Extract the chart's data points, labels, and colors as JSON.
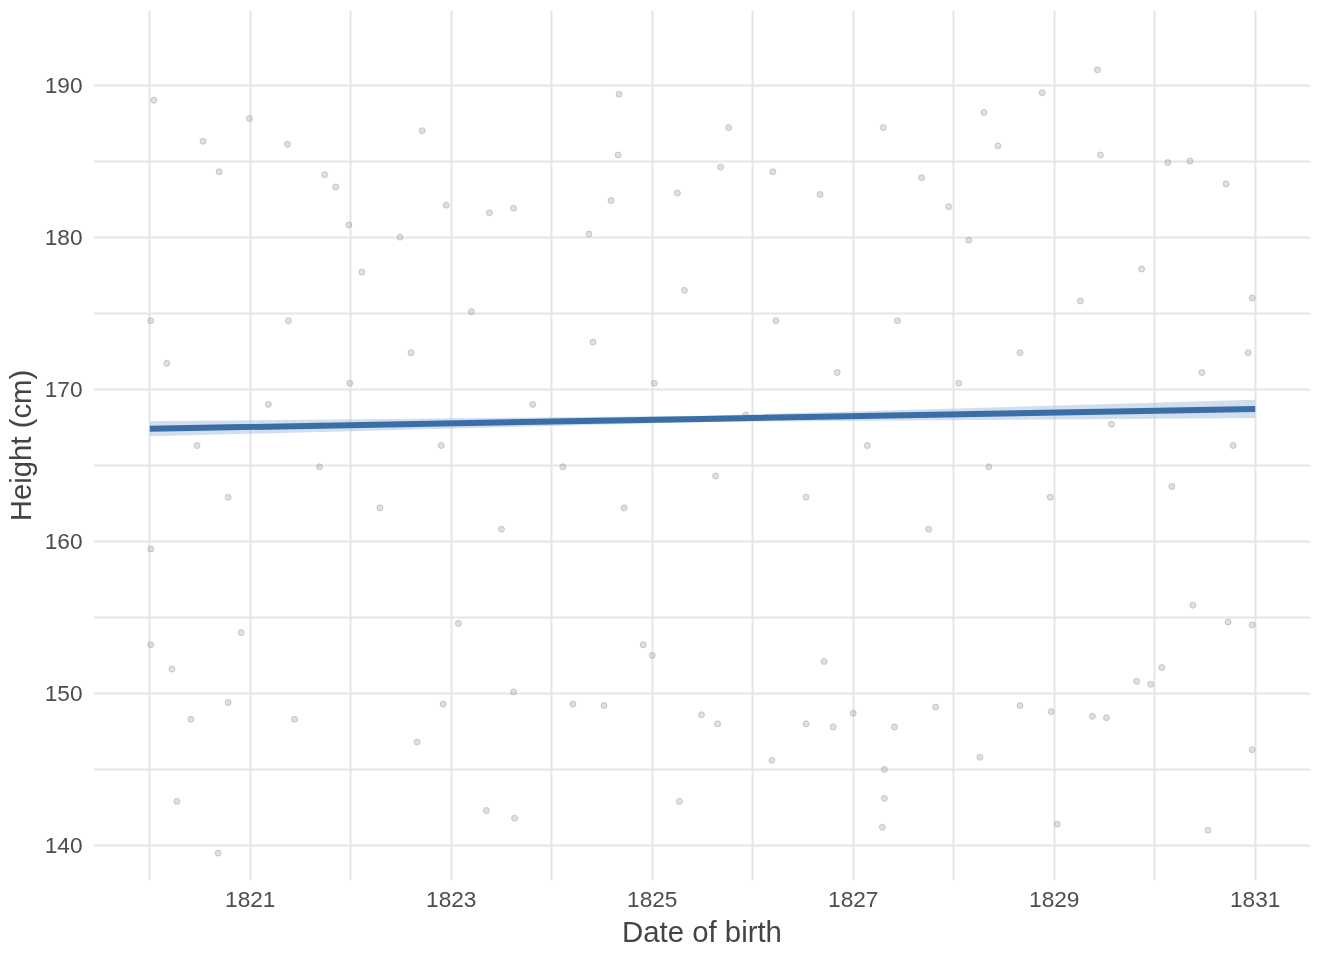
{
  "chart_data": {
    "type": "scatter",
    "xlabel": "Date of birth",
    "ylabel": "Height (cm)",
    "grid": true,
    "xlim": [
      1819.44,
      1831.55
    ],
    "ylim": [
      137.7,
      194.9
    ],
    "xticks": [
      {
        "value": 1820,
        "label": null
      },
      1821,
      {
        "value": 1822,
        "label": null
      },
      1823,
      {
        "value": 1824,
        "label": null
      },
      1825,
      {
        "value": 1826,
        "label": null
      },
      1827,
      {
        "value": 1828,
        "label": null
      },
      1829,
      {
        "value": 1830,
        "label": null
      },
      1831
    ],
    "yticks": [
      140,
      {
        "value": 145,
        "label": null
      },
      150,
      {
        "value": 155,
        "label": null
      },
      160,
      {
        "value": 165,
        "label": null
      },
      170,
      {
        "value": 175,
        "label": null
      },
      180,
      {
        "value": 185,
        "label": null
      },
      190
    ],
    "series": [
      {
        "marker": "circle",
        "color": "#999999",
        "x": [
          1820.04,
          1820.53,
          1820.99,
          1821.37,
          1820.69,
          1820.01,
          1820.01,
          1820.27,
          1820.68,
          1820.41,
          1820.91,
          1820.78,
          1820.22,
          1821.44,
          1821.74,
          1821.85,
          1821.98,
          1822.11,
          1822.49,
          1822.71,
          1822.95,
          1822.66,
          1822.92,
          1823.07,
          1823.35,
          1823.63,
          1823.62,
          1823.38,
          1823.62,
          1824.37,
          1824.59,
          1824.67,
          1824.66,
          1824.21,
          1824.52,
          1824.91,
          1825.0,
          1825.27,
          1825.49,
          1825.65,
          1825.68,
          1825.76,
          1825.25,
          1826.2,
          1826.19,
          1826.53,
          1826.71,
          1826.8,
          1826.67,
          1827.0,
          1827.31,
          1827.29,
          1827.31,
          1827.41,
          1827.3,
          1827.68,
          1827.95,
          1828.15,
          1828.3,
          1828.44,
          1828.26,
          1827.82,
          1828.66,
          1828.88,
          1829.03,
          1828.97,
          1829.43,
          1829.46,
          1829.38,
          1829.52,
          1829.82,
          1829.96,
          1830.13,
          1830.35,
          1830.53,
          1830.71,
          1830.97,
          1830.97,
          1830.97,
          1830.73,
          1830.07,
          1830.38,
          1820.17,
          1820.47,
          1820.78,
          1821.18,
          1821.38,
          1821.69,
          1821.99,
          1822.29,
          1822.6,
          1822.9,
          1823.2,
          1823.5,
          1823.81,
          1824.11,
          1824.41,
          1824.72,
          1825.02,
          1825.32,
          1825.63,
          1825.93,
          1826.23,
          1826.53,
          1826.84,
          1827.14,
          1827.44,
          1827.75,
          1828.05,
          1828.35,
          1828.66,
          1828.96,
          1829.26,
          1829.57,
          1829.87,
          1830.17,
          1830.47,
          1830.78,
          1830.93,
          1820.01
        ],
        "values": [
          189.0,
          186.3,
          187.8,
          186.1,
          184.3,
          159.5,
          153.2,
          142.9,
          139.5,
          148.3,
          154.0,
          149.4,
          151.6,
          148.3,
          184.1,
          183.3,
          180.8,
          177.7,
          180.0,
          187.0,
          182.1,
          146.8,
          149.3,
          154.6,
          142.3,
          141.8,
          150.1,
          181.6,
          181.9,
          180.2,
          182.4,
          189.4,
          185.4,
          149.3,
          149.2,
          153.2,
          152.5,
          142.9,
          148.6,
          148.0,
          184.6,
          187.2,
          182.9,
          184.3,
          145.6,
          148.0,
          152.1,
          147.8,
          182.8,
          148.7,
          143.1,
          141.2,
          145.0,
          147.8,
          187.2,
          183.9,
          182.0,
          179.8,
          188.2,
          186.0,
          145.8,
          149.1,
          149.2,
          189.5,
          141.4,
          148.8,
          191.0,
          185.4,
          148.5,
          148.4,
          150.8,
          150.6,
          184.9,
          185.0,
          141.0,
          183.5,
          146.3,
          154.5,
          176.0,
          154.7,
          151.7,
          155.8,
          171.7,
          166.3,
          162.9,
          169.0,
          174.5,
          164.9,
          170.4,
          162.2,
          172.4,
          166.3,
          175.1,
          160.8,
          169.0,
          164.9,
          173.1,
          162.2,
          170.4,
          176.5,
          164.3,
          168.3,
          174.5,
          162.9,
          171.1,
          166.3,
          174.5,
          160.8,
          170.4,
          164.9,
          172.4,
          162.9,
          175.8,
          167.7,
          177.9,
          163.6,
          171.1,
          166.3,
          172.4,
          174.5
        ]
      },
      {
        "type": "line",
        "color": "#3a6ea5",
        "x": [
          1820.0,
          1825.5,
          1831.0
        ],
        "values": [
          167.4,
          168.05,
          168.7
        ],
        "lower": [
          166.9,
          167.85,
          168.1
        ],
        "upper": [
          167.9,
          168.25,
          169.3
        ]
      }
    ]
  }
}
